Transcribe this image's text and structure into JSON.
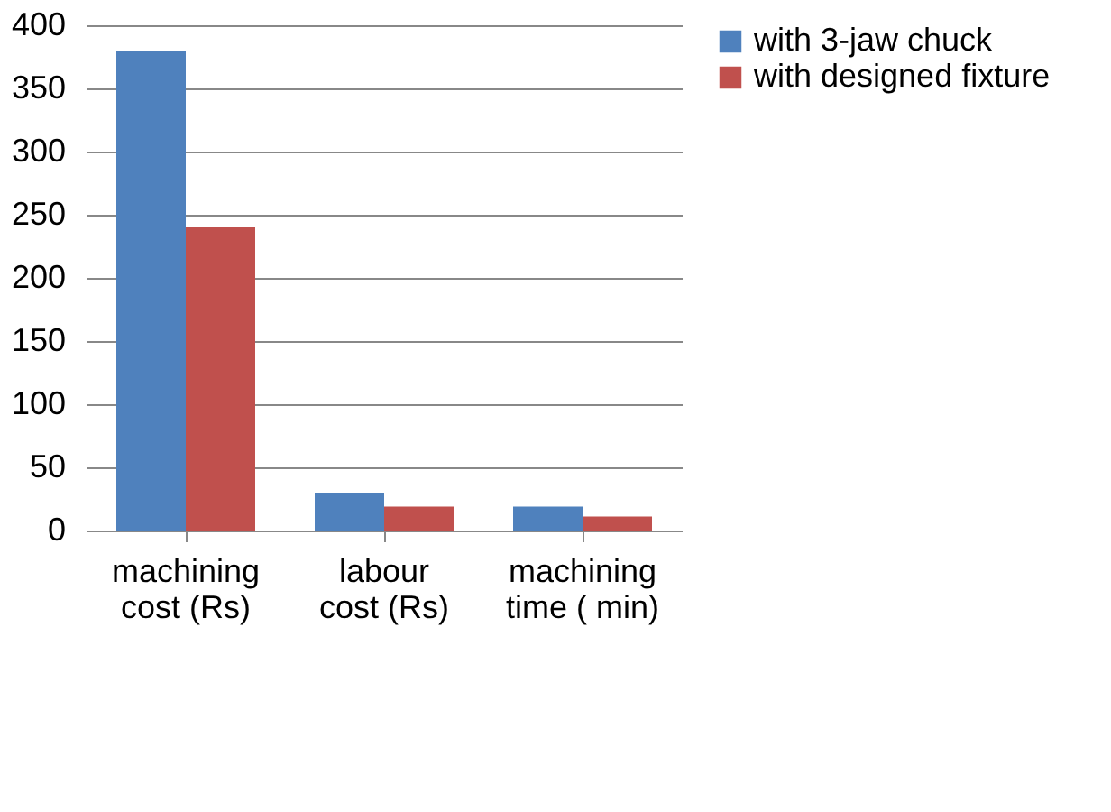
{
  "chart_data": {
    "type": "bar",
    "categories": [
      "machining cost (Rs)",
      "labour cost (Rs)",
      "machining time ( min)"
    ],
    "series": [
      {
        "name": "with 3-jaw chuck",
        "color": "#4f81bd",
        "values": [
          380,
          30,
          19
        ]
      },
      {
        "name": "with designed fixture",
        "color": "#c0504d",
        "values": [
          240,
          19,
          11
        ]
      }
    ],
    "ylim": [
      0,
      400
    ],
    "yticks": [
      0,
      50,
      100,
      150,
      200,
      250,
      300,
      350,
      400
    ],
    "grid": "y",
    "legend": "right"
  }
}
